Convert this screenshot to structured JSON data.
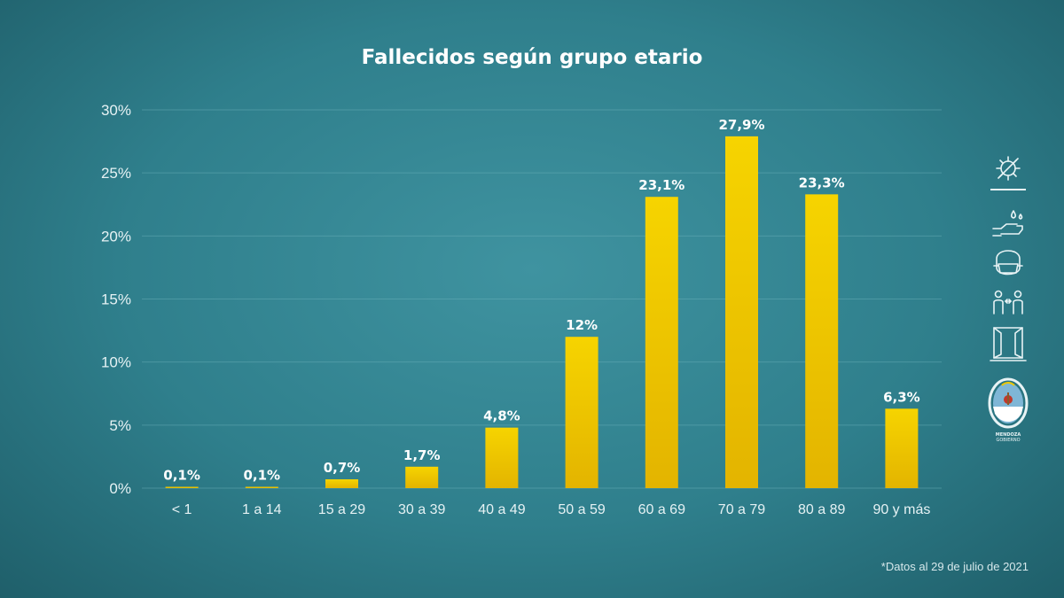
{
  "chart_data": {
    "type": "bar",
    "title": "Fallecidos según grupo etario",
    "categories": [
      "< 1",
      "1 a 14",
      "15 a 29",
      "30 a 39",
      "40 a 49",
      "50 a 59",
      "60 a 69",
      "70 a 79",
      "80 a 89",
      "90 y más"
    ],
    "values": [
      0.1,
      0.1,
      0.7,
      1.7,
      4.8,
      12,
      23.1,
      27.9,
      23.3,
      6.3
    ],
    "value_labels": [
      "0,1%",
      "0,1%",
      "0,7%",
      "1,7%",
      "4,8%",
      "12%",
      "23,1%",
      "27,9%",
      "23,3%",
      "6,3%"
    ],
    "ylim": [
      0,
      30
    ],
    "yticks": [
      0,
      5,
      10,
      15,
      20,
      25,
      30
    ],
    "ytick_labels": [
      "0%",
      "5%",
      "10%",
      "15%",
      "20%",
      "25%",
      "30%"
    ],
    "xlabel": "",
    "ylabel": "",
    "grid": true,
    "legend": "none",
    "bar_color": "#f0c800",
    "note": "*Datos al 29 de julio de 2021"
  },
  "sidebar": {
    "icons": [
      "virus-icon",
      "hand-washing-icon",
      "face-mask-icon",
      "social-distance-icon",
      "window-ventilation-icon",
      "mendoza-seal-icon"
    ]
  },
  "seal": {
    "text_line1": "MENDOZA",
    "text_line2": "GOBIERNO"
  }
}
